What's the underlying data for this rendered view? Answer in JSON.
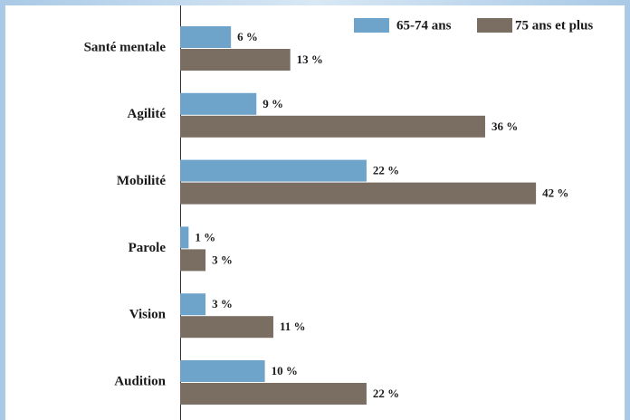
{
  "chart_data": {
    "type": "bar",
    "orientation": "horizontal",
    "categories": [
      "Santé mentale",
      "Agilité",
      "Mobilité",
      "Parole",
      "Vision",
      "Audition"
    ],
    "series": [
      {
        "name": "65-74 ans",
        "color": "#6ea4c9",
        "values": [
          6,
          9,
          22,
          1,
          3,
          10
        ],
        "value_labels": [
          "6 %",
          "9 %",
          "22 %",
          "1 %",
          "3 %",
          "10 %"
        ]
      },
      {
        "name": "75 ans et plus",
        "color": "#7a6d62",
        "values": [
          13,
          36,
          42,
          3,
          11,
          22
        ],
        "value_labels": [
          "13 %",
          "36 %",
          "42 %",
          "3 %",
          "11 %",
          "22 %"
        ]
      }
    ],
    "legend": "top-right"
  }
}
